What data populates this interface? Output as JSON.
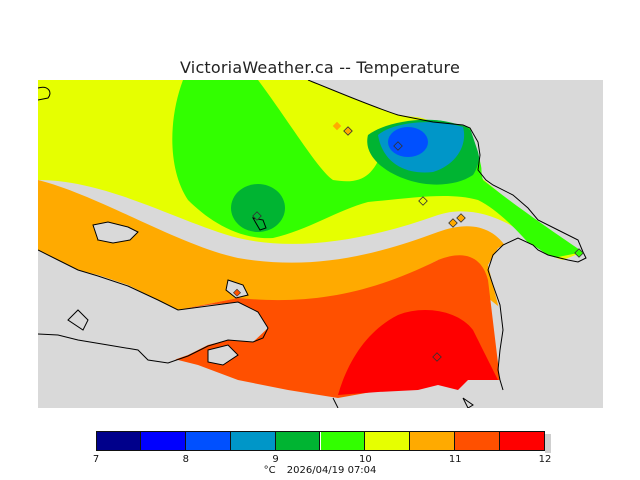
{
  "header": {
    "title": "VictoriaWeather.ca -- Temperature"
  },
  "map": {
    "land_color": "#d9d9d9",
    "coast_color": "#000000",
    "stations": [
      {
        "id": "s1"
      },
      {
        "id": "s2"
      },
      {
        "id": "s3"
      },
      {
        "id": "s4"
      },
      {
        "id": "s5"
      },
      {
        "id": "s6"
      },
      {
        "id": "s7"
      },
      {
        "id": "s8"
      },
      {
        "id": "s9"
      },
      {
        "id": "s10"
      }
    ]
  },
  "colorbar": {
    "colors": [
      "#00008b",
      "#0000ff",
      "#0050ff",
      "#0096c8",
      "#00b432",
      "#32ff00",
      "#e6ff00",
      "#ffaa00",
      "#ff5000",
      "#ff0000"
    ],
    "labels": [
      "7",
      "8",
      "9",
      "10",
      "11",
      "12"
    ],
    "unit": "°C",
    "timestamp": "2026/04/19 07:04"
  }
}
